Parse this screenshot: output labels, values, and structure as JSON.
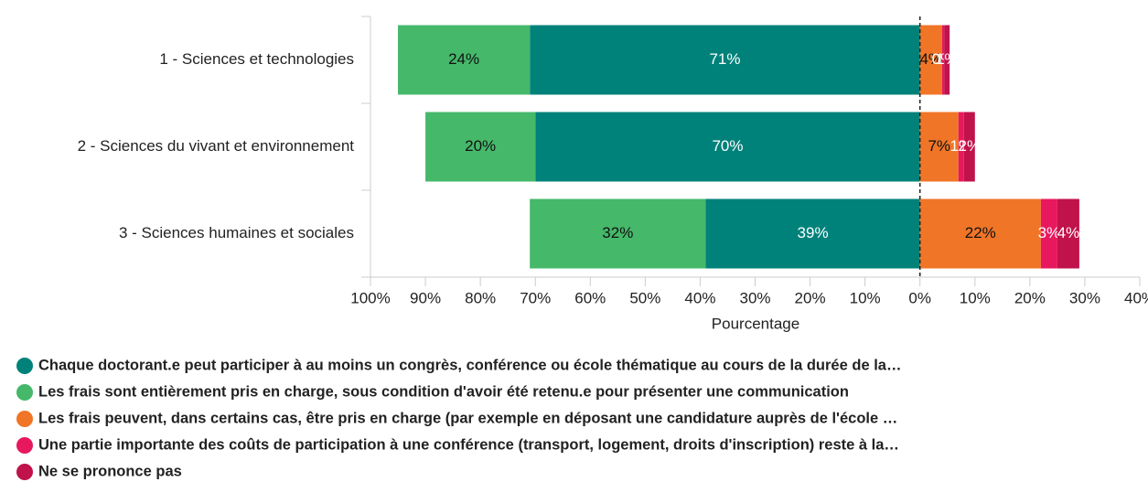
{
  "chart_data": {
    "type": "diverging-bar",
    "categories": [
      "1 - Sciences et technologies",
      "2 - Sciences du vivant et environnement",
      "3 - Sciences humaines et sociales"
    ],
    "series": [
      {
        "name": "Chaque doctorant.e peut participer à au moins un congrès, conférence ou école thématique au cours de la durée de la…",
        "color": "#00827a",
        "values": [
          -71,
          -70,
          -39
        ],
        "value_labels": [
          "71%",
          "70%",
          "39%"
        ]
      },
      {
        "name": "Les frais sont entièrement pris en charge, sous condition d'avoir été retenu.e pour présenter une communication",
        "color": "#45b86a",
        "values": [
          -24,
          -20,
          -32
        ],
        "value_labels": [
          "24%",
          "20%",
          "32%"
        ]
      },
      {
        "name": "Les frais peuvent, dans certains cas, être pris en charge (par exemple en déposant une candidature auprès de l'école …",
        "color": "#f07527",
        "values": [
          4,
          7,
          22
        ],
        "value_labels": [
          "4%",
          "7%",
          "22%"
        ]
      },
      {
        "name": "Une partie importante des coûts de participation à une conférence (transport, logement, droits d'inscription) reste à la…",
        "color": "#e8185e",
        "values": [
          0.4,
          1,
          3
        ],
        "value_labels": [
          "0%",
          "1%",
          "3%"
        ]
      },
      {
        "name": "Ne se prononce pas",
        "color": "#c0124b",
        "values": [
          1,
          2,
          4
        ],
        "value_labels": [
          "1%",
          "2%",
          "4%"
        ]
      }
    ],
    "xlabel": "Pourcentage",
    "xlim": [
      -100,
      40
    ],
    "xticks": [
      {
        "value": -100,
        "label": "100%"
      },
      {
        "value": -90,
        "label": "90%"
      },
      {
        "value": -80,
        "label": "80%"
      },
      {
        "value": -70,
        "label": "70%"
      },
      {
        "value": -60,
        "label": "60%"
      },
      {
        "value": -50,
        "label": "50%"
      },
      {
        "value": -40,
        "label": "40%"
      },
      {
        "value": -30,
        "label": "30%"
      },
      {
        "value": -20,
        "label": "20%"
      },
      {
        "value": -10,
        "label": "10%"
      },
      {
        "value": 0,
        "label": "0%"
      },
      {
        "value": 10,
        "label": "10%"
      },
      {
        "value": 20,
        "label": "20%"
      },
      {
        "value": 30,
        "label": "30%"
      },
      {
        "value": 40,
        "label": "40%"
      }
    ]
  }
}
